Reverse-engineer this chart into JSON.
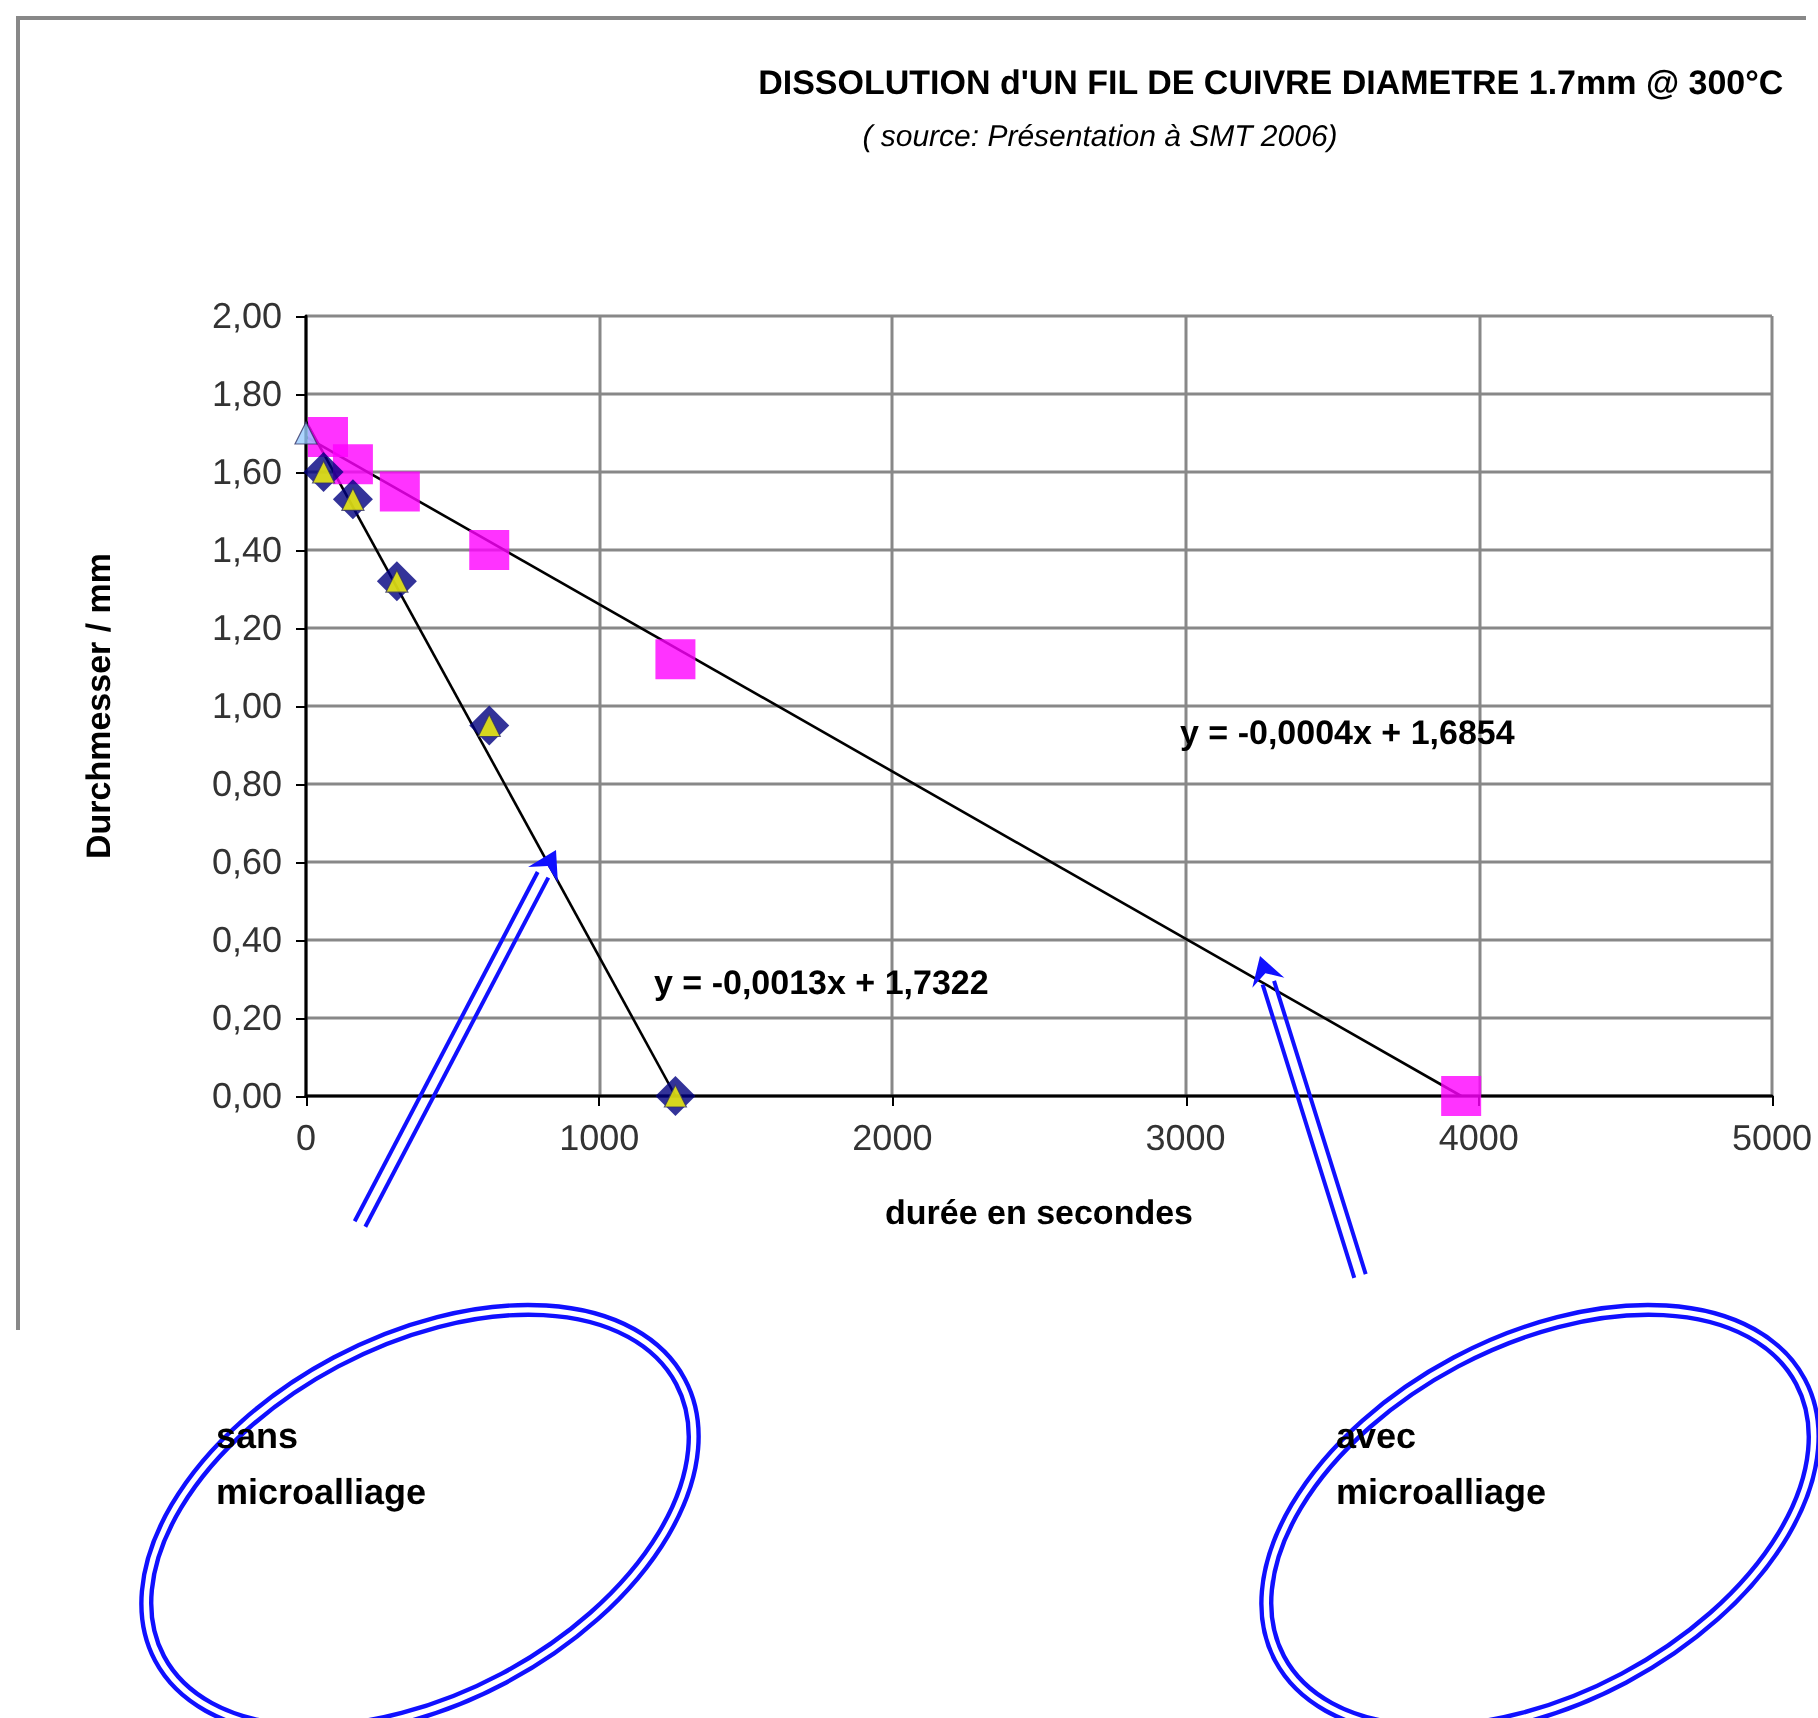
{
  "chart_data": {
    "type": "scatter",
    "title": "DISSOLUTION d'UN FIL DE CUIVRE DIAMETRE 1.7mm @ 300°C",
    "subtitle": "( source: Présentation à SMT 2006)",
    "xlabel": "durée en secondes",
    "ylabel": "Durchmesser / mm",
    "xlim": [
      0,
      5000
    ],
    "xticks": [
      0,
      1000,
      2000,
      3000,
      4000,
      5000
    ],
    "ylim": [
      0,
      2
    ],
    "yticks": [
      {
        "value": 0,
        "label": "0,00"
      },
      {
        "value": 0.2,
        "label": "0,20"
      },
      {
        "value": 0.4,
        "label": "0,40"
      },
      {
        "value": 0.6,
        "label": "0,60"
      },
      {
        "value": 0.8,
        "label": "0,80"
      },
      {
        "value": 1,
        "label": "1,00"
      },
      {
        "value": 1.2,
        "label": "1,20"
      },
      {
        "value": 1.4,
        "label": "1,40"
      },
      {
        "value": 1.6,
        "label": "1,60"
      },
      {
        "value": 1.8,
        "label": "1,80"
      },
      {
        "value": 2,
        "label": "2,00"
      }
    ],
    "grid": true,
    "series": [
      {
        "type": "line",
        "color": "#000000",
        "marker": "none",
        "x": [
          0,
          1260
        ],
        "values": [
          1.73,
          0
        ]
      },
      {
        "type": "line",
        "color": "#000000",
        "marker": "none",
        "x": [
          0,
          3940
        ],
        "values": [
          1.69,
          0
        ]
      },
      {
        "marker": "square",
        "color": "#ff00ff",
        "x": [
          75,
          160,
          320,
          625,
          1260,
          3940
        ],
        "values": [
          1.69,
          1.62,
          1.55,
          1.4,
          1.12,
          0
        ]
      },
      {
        "marker": "diamond",
        "color": "#000080",
        "x": [
          60,
          160,
          310,
          625,
          1260
        ],
        "values": [
          1.6,
          1.53,
          1.32,
          0.95,
          0
        ]
      },
      {
        "marker": "triangle",
        "color": "#ffff00",
        "x": [
          60,
          160,
          310,
          625,
          1260
        ],
        "values": [
          1.6,
          1.53,
          1.32,
          0.95,
          0
        ]
      },
      {
        "marker": "triangle",
        "color": "#99ccff",
        "x": [
          0
        ],
        "values": [
          1.7
        ]
      }
    ],
    "annotations": [
      "y = -0,0013x + 1,7322",
      "y = -0,0004x + 1,6854",
      "sans microalliage",
      "avec microalliage"
    ]
  }
}
